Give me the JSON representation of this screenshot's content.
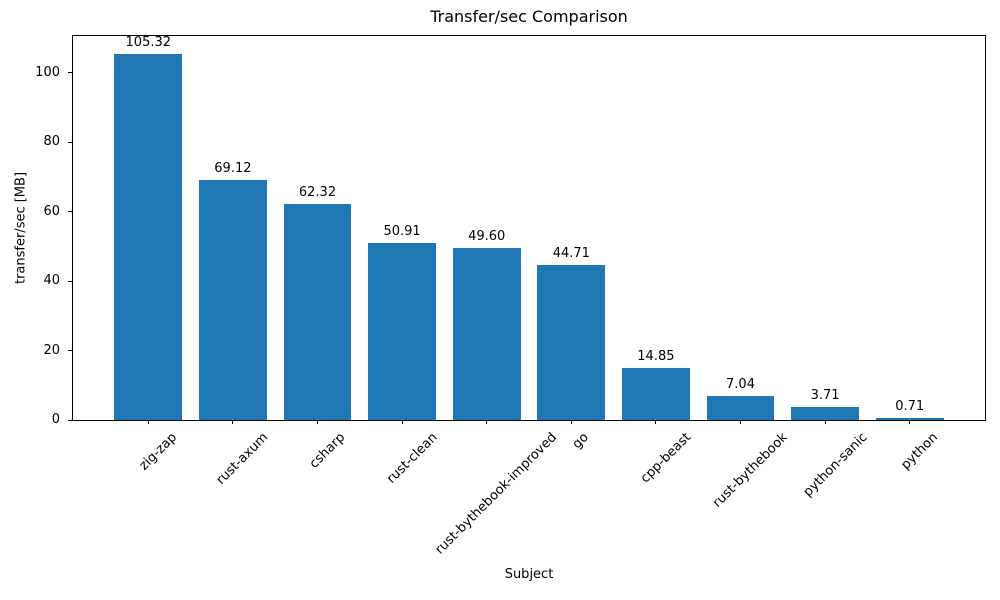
{
  "chart_data": {
    "type": "bar",
    "title": "Transfer/sec Comparison",
    "xlabel": "Subject",
    "ylabel": "transfer/sec [MB]",
    "categories": [
      "zig-zap",
      "rust-axum",
      "csharp",
      "rust-clean",
      "rust-bythebook-improved",
      "go",
      "cpp-beast",
      "rust-bythebook",
      "python-sanic",
      "python"
    ],
    "values": [
      105.32,
      69.12,
      62.32,
      50.91,
      49.6,
      44.71,
      14.85,
      7.04,
      3.71,
      0.71
    ],
    "value_labels": [
      "105.32",
      "69.12",
      "62.32",
      "50.91",
      "49.60",
      "44.71",
      "14.85",
      "7.04",
      "3.71",
      "0.71"
    ],
    "yticks": [
      0,
      20,
      40,
      60,
      80,
      100
    ],
    "ylim": [
      0,
      110.6
    ],
    "x_tick_rotation": 45,
    "grid": false,
    "legend": null,
    "bar_color": "#1f77b4",
    "text_color": "#000000",
    "background_color": "#ffffff"
  }
}
